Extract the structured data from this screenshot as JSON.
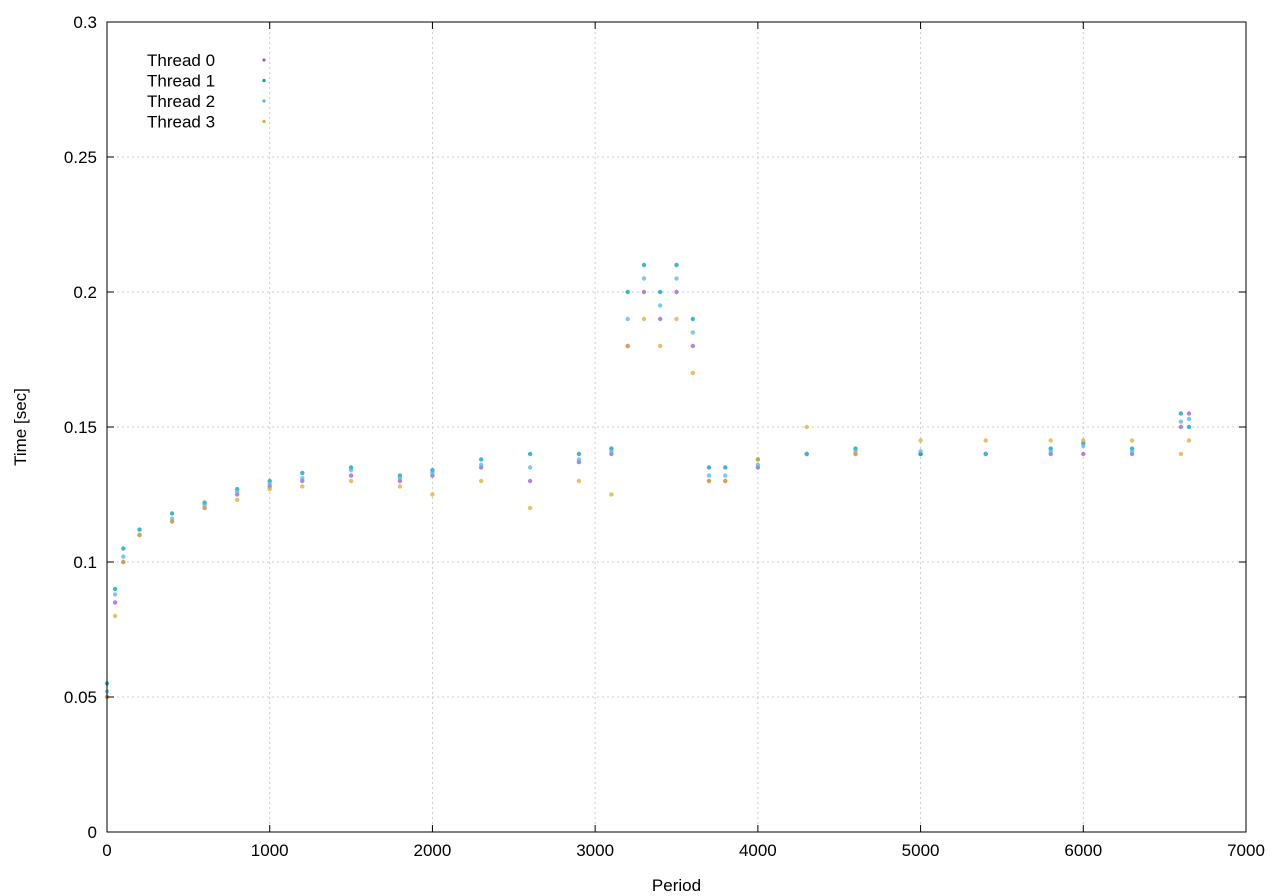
{
  "chart_data": {
    "type": "scatter",
    "title": "",
    "xlabel": "Period",
    "ylabel": "Time [sec]",
    "xlim": [
      0,
      7000
    ],
    "ylim": [
      0,
      0.3
    ],
    "x_ticks": [
      0,
      1000,
      2000,
      3000,
      4000,
      5000,
      6000,
      7000
    ],
    "x_tick_labels": [
      "0",
      "1000",
      "2000",
      "3000",
      "4000",
      "5000",
      "6000",
      "7000"
    ],
    "y_ticks": [
      0,
      0.05,
      0.1,
      0.15,
      0.2,
      0.25,
      0.3
    ],
    "y_tick_labels": [
      "0",
      "0.05",
      "0.1",
      "0.15",
      "0.2",
      "0.25",
      "0.3"
    ],
    "grid": true,
    "legend_position": "top-left",
    "series": [
      {
        "name": "Thread 0",
        "color": "#9b59d0",
        "x": [
          0,
          50,
          100,
          200,
          400,
          600,
          800,
          1000,
          1200,
          1500,
          1800,
          2000,
          2300,
          2600,
          2900,
          3100,
          3200,
          3300,
          3400,
          3500,
          3600,
          3700,
          3800,
          4000,
          4300,
          4600,
          5000,
          5400,
          5800,
          6000,
          6300,
          6600,
          6650
        ],
        "y": [
          0.05,
          0.085,
          0.1,
          0.11,
          0.115,
          0.12,
          0.125,
          0.128,
          0.13,
          0.132,
          0.13,
          0.132,
          0.135,
          0.13,
          0.137,
          0.14,
          0.18,
          0.2,
          0.19,
          0.2,
          0.18,
          0.13,
          0.13,
          0.135,
          0.14,
          0.14,
          0.14,
          0.14,
          0.14,
          0.14,
          0.14,
          0.15,
          0.155
        ]
      },
      {
        "name": "Thread 1",
        "color": "#00a0b0",
        "x": [
          0,
          50,
          100,
          200,
          400,
          600,
          800,
          1000,
          1200,
          1500,
          1800,
          2000,
          2300,
          2600,
          2900,
          3100,
          3200,
          3300,
          3400,
          3500,
          3600,
          3700,
          3800,
          4000,
          4300,
          4600,
          5000,
          5400,
          5800,
          6000,
          6300,
          6600,
          6650
        ],
        "y": [
          0.055,
          0.09,
          0.105,
          0.112,
          0.118,
          0.122,
          0.127,
          0.13,
          0.133,
          0.135,
          0.132,
          0.134,
          0.138,
          0.14,
          0.14,
          0.142,
          0.2,
          0.21,
          0.2,
          0.21,
          0.19,
          0.135,
          0.135,
          0.138,
          0.14,
          0.142,
          0.14,
          0.14,
          0.142,
          0.144,
          0.142,
          0.155,
          0.15
        ]
      },
      {
        "name": "Thread 2",
        "color": "#56b4e9",
        "x": [
          0,
          50,
          100,
          200,
          400,
          600,
          800,
          1000,
          1200,
          1500,
          1800,
          2000,
          2300,
          2600,
          2900,
          3100,
          3200,
          3300,
          3400,
          3500,
          3600,
          3700,
          3800,
          4000,
          4300,
          4600,
          5000,
          5400,
          5800,
          6000,
          6300,
          6600,
          6650
        ],
        "y": [
          0.052,
          0.088,
          0.102,
          0.11,
          0.116,
          0.121,
          0.126,
          0.129,
          0.131,
          0.134,
          0.131,
          0.133,
          0.136,
          0.135,
          0.138,
          0.141,
          0.19,
          0.205,
          0.195,
          0.205,
          0.185,
          0.132,
          0.132,
          0.136,
          0.14,
          0.141,
          0.141,
          0.14,
          0.141,
          0.143,
          0.141,
          0.152,
          0.153
        ]
      },
      {
        "name": "Thread 3",
        "color": "#e6a832",
        "x": [
          0,
          50,
          100,
          200,
          400,
          600,
          800,
          1000,
          1200,
          1500,
          1800,
          2000,
          2300,
          2600,
          2900,
          3100,
          3200,
          3300,
          3400,
          3500,
          3600,
          3700,
          3800,
          4000,
          4300,
          4600,
          5000,
          5400,
          5800,
          6000,
          6300,
          6600,
          6650
        ],
        "y": [
          0.05,
          0.08,
          0.1,
          0.11,
          0.115,
          0.12,
          0.123,
          0.127,
          0.128,
          0.13,
          0.128,
          0.125,
          0.13,
          0.12,
          0.13,
          0.125,
          0.18,
          0.19,
          0.18,
          0.19,
          0.17,
          0.13,
          0.13,
          0.138,
          0.15,
          0.14,
          0.145,
          0.145,
          0.145,
          0.145,
          0.145,
          0.14,
          0.145
        ]
      }
    ]
  }
}
